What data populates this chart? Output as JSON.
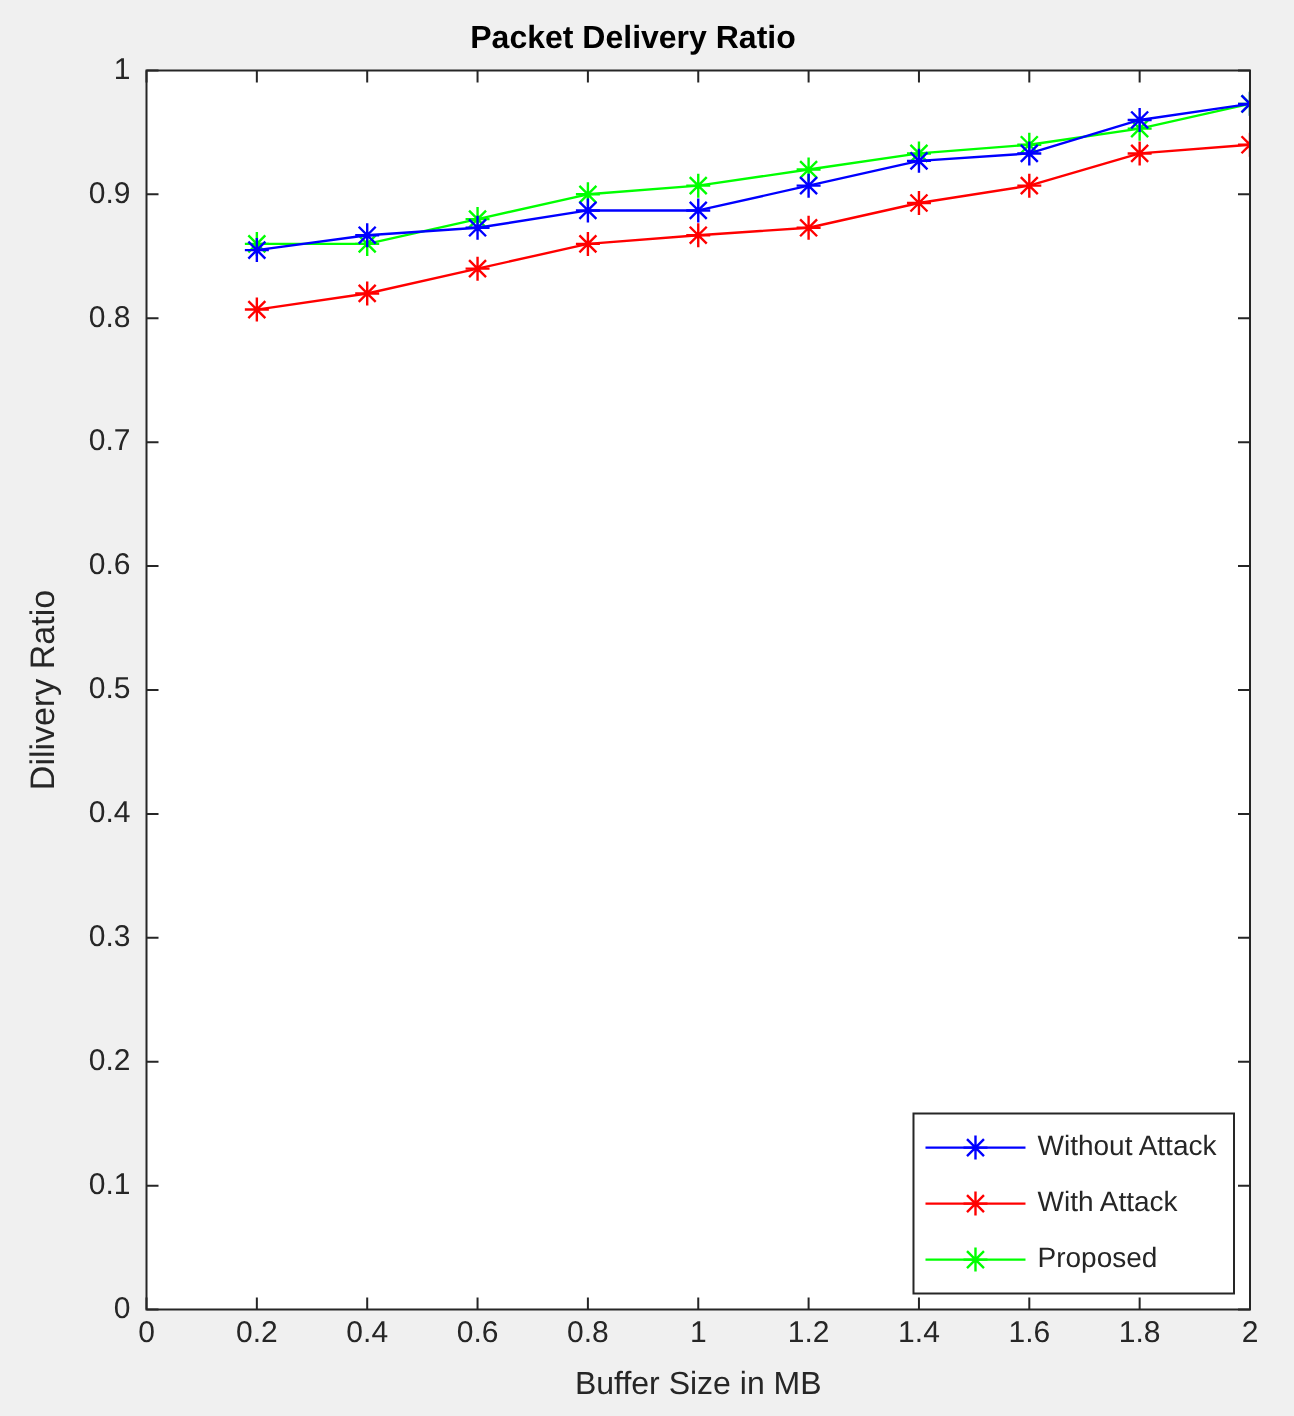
{
  "chart_data": {
    "type": "line",
    "title": "Packet Delivery Ratio",
    "xlabel": "Buffer Size in MB",
    "ylabel": "Dilivery Ratio",
    "x": [
      0.2,
      0.4,
      0.6,
      0.8,
      1,
      1.2,
      1.4,
      1.6,
      1.8,
      2
    ],
    "series": [
      {
        "name": "Without Attack",
        "color": "#0000ff",
        "values": [
          0.855,
          0.867,
          0.873,
          0.887,
          0.887,
          0.907,
          0.927,
          0.933,
          0.96,
          0.973
        ]
      },
      {
        "name": "With Attack",
        "color": "#ff0000",
        "values": [
          0.807,
          0.82,
          0.84,
          0.86,
          0.867,
          0.873,
          0.893,
          0.907,
          0.933,
          0.94
        ]
      },
      {
        "name": "Proposed",
        "color": "#00ff00",
        "values": [
          0.86,
          0.86,
          0.88,
          0.9,
          0.907,
          0.92,
          0.933,
          0.94,
          0.953,
          0.973
        ]
      }
    ],
    "xlim": [
      0,
      2
    ],
    "xticks": [
      0,
      0.2,
      0.4,
      0.6,
      0.8,
      1,
      1.2,
      1.4,
      1.6,
      1.8,
      2
    ],
    "ylim": [
      0,
      1
    ],
    "yticks": [
      0,
      0.1,
      0.2,
      0.3,
      0.4,
      0.5,
      0.6,
      0.7,
      0.8,
      0.9,
      1
    ],
    "grid": false,
    "legend": "bottom right",
    "marker": "cross",
    "line_style": "solid"
  }
}
